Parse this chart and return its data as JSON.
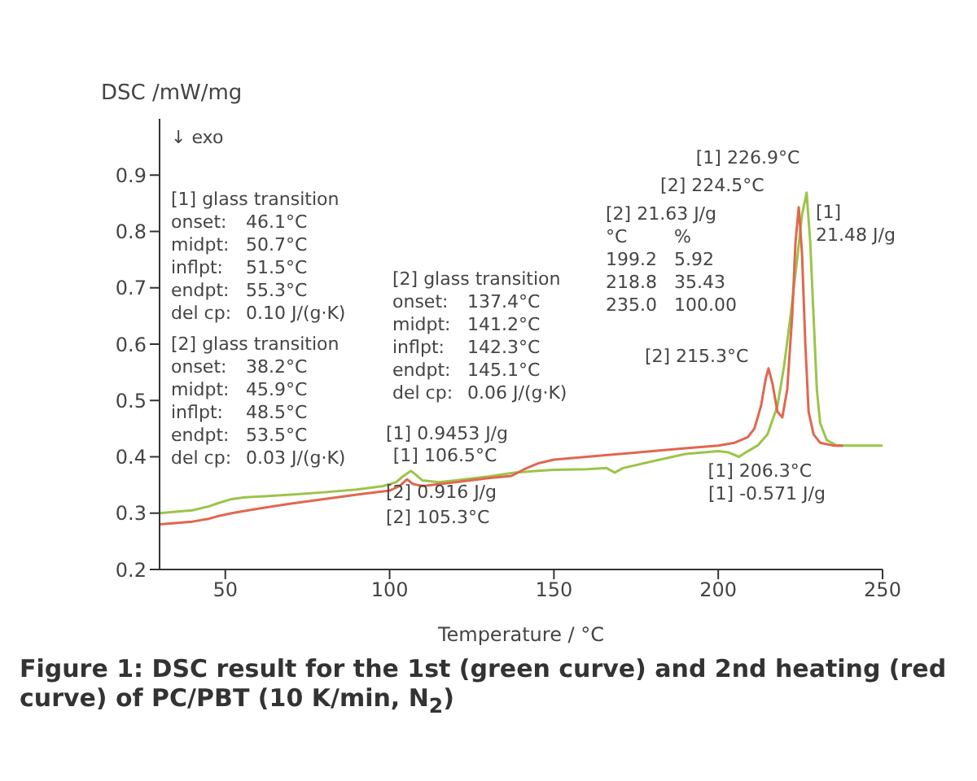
{
  "chart_data": {
    "type": "line",
    "title": "Figure 1: DSC result for the 1st (green curve) and 2nd heating (red curve) of PC/PBT (10 K/min, N$_{2}$)",
    "xlabel": "Temperature / °C",
    "ylabel": "DSC /mW/mg",
    "xlim": [
      30,
      250
    ],
    "xticks": [
      50,
      100,
      150,
      200,
      250
    ],
    "ylim": [
      0.2,
      1.0
    ],
    "yticks": [
      0.2,
      0.3,
      0.4,
      0.5,
      0.6,
      0.7,
      0.8,
      0.9
    ],
    "marker": "none",
    "line_style": "solid",
    "series": [
      {
        "color": "#9cc44a",
        "x": [
          30,
          40,
          45,
          48,
          52,
          56,
          62,
          70,
          80,
          90,
          98,
          102,
          104,
          106.5,
          108,
          110,
          115,
          120,
          130,
          138,
          145,
          150,
          160,
          166,
          168.5,
          171,
          180,
          190,
          200,
          203,
          206.3,
          209,
          212,
          215,
          218,
          220,
          222,
          224,
          225.5,
          226.9,
          228,
          229,
          230,
          231,
          233,
          236,
          240,
          250
        ],
        "values": [
          0.3,
          0.305,
          0.312,
          0.318,
          0.325,
          0.328,
          0.33,
          0.333,
          0.337,
          0.342,
          0.348,
          0.355,
          0.365,
          0.375,
          0.368,
          0.358,
          0.355,
          0.358,
          0.365,
          0.372,
          0.375,
          0.377,
          0.378,
          0.38,
          0.372,
          0.38,
          0.392,
          0.405,
          0.41,
          0.408,
          0.4,
          0.41,
          0.42,
          0.44,
          0.49,
          0.56,
          0.65,
          0.75,
          0.83,
          0.869,
          0.78,
          0.65,
          0.52,
          0.46,
          0.43,
          0.42,
          0.42,
          0.42
        ]
      },
      {
        "color": "#e0674f",
        "x": [
          30,
          40,
          45,
          48,
          52,
          60,
          70,
          80,
          90,
          100,
          103,
          105.3,
          107,
          110,
          120,
          130,
          137,
          141,
          145,
          150,
          160,
          170,
          180,
          190,
          200,
          205,
          209,
          211,
          213,
          214.5,
          215.3,
          216.5,
          218,
          219.5,
          221,
          222.5,
          223.5,
          224.5,
          225.5,
          226.5,
          227.5,
          229,
          231,
          235,
          238
        ],
        "values": [
          0.28,
          0.285,
          0.29,
          0.295,
          0.3,
          0.308,
          0.317,
          0.325,
          0.333,
          0.34,
          0.348,
          0.36,
          0.352,
          0.348,
          0.355,
          0.362,
          0.366,
          0.378,
          0.388,
          0.395,
          0.4,
          0.405,
          0.41,
          0.415,
          0.42,
          0.425,
          0.435,
          0.45,
          0.49,
          0.54,
          0.557,
          0.53,
          0.48,
          0.47,
          0.52,
          0.65,
          0.78,
          0.843,
          0.76,
          0.6,
          0.48,
          0.44,
          0.425,
          0.42,
          0.42
        ]
      }
    ],
    "annotations": [
      "[1] glass transition\nonset:\t46.1°C\nmidpt:\t50.7°C\ninflpt:\t51.5°C\nendpt:\t55.3°C\ndel cp:\t0.10 J/(g·K)",
      "[2] glass transition\nonset:\t38.2°C\nmidpt:\t45.9°C\ninflpt:\t48.5°C\nendpt:\t53.5°C\ndel cp:\t0.03 J/(g·K)",
      "[2] glass transition\nonset:\t137.4°C\nmidpt:\t141.2°C\ninflpt:\t142.3°C\nendpt:\t145.1°C\ndel cp:\t0.06 J/(g·K)",
      "[1] 0.9453 J/g",
      {
        "text": "[1] 106.5°C",
        "x": 106.5,
        "y": 0.375
      },
      "[2] 0.916 J/g",
      {
        "text": "[2] 105.3°C",
        "x": 105.3,
        "y": 0.36
      },
      "[2] 21.63 J/g\n°C\t%\n199.2\t5.92\n218.8\t35.43\n235.0\t100.00",
      {
        "text": "[2] 224.5°C",
        "x": 224.5,
        "y": 0.843
      },
      {
        "text": "[1] 226.9°C",
        "x": 226.9,
        "y": 0.869
      },
      "[1]\n21.48 J/g",
      {
        "text": "[2] 215.3°C",
        "x": 215.3,
        "y": 0.557
      },
      {
        "text": "[1] 206.3°C",
        "x": 206.3,
        "y": 0.4
      },
      "[1] -0.571 J/g",
      "↓ exo"
    ]
  }
}
